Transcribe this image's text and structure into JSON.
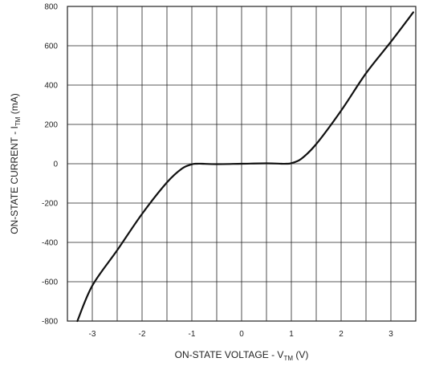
{
  "chart_data": {
    "type": "line",
    "title": "",
    "xlabel": {
      "main": "ON-STATE VOLTAGE - V",
      "subscript": "TM",
      "unit": " (V)"
    },
    "ylabel": {
      "main": "ON-STATE CURRENT - I",
      "subscript": "TM",
      "unit": " (mA)"
    },
    "xlim": [
      -3.5,
      3.5
    ],
    "ylim": [
      -800,
      800
    ],
    "x_ticks": [
      -3,
      -2,
      -1,
      0,
      1,
      2,
      3
    ],
    "x_tick_labels": [
      "-3",
      "-2",
      "-1",
      "0",
      "1",
      "2",
      "3"
    ],
    "y_ticks": [
      800,
      600,
      400,
      200,
      0,
      -200,
      -400,
      -600,
      -800
    ],
    "y_tick_labels": [
      "800",
      "600",
      "400",
      "200",
      "0",
      "-200",
      "-400",
      "-600",
      "-800"
    ],
    "x_grid": [
      -3.5,
      -3.0,
      -2.5,
      -2.0,
      -1.5,
      -1.0,
      -0.5,
      0,
      0.5,
      1.0,
      1.5,
      2.0,
      2.5,
      3.0
    ],
    "y_grid": [
      600,
      400,
      200,
      0,
      -200,
      -400,
      -600
    ],
    "grid": true,
    "legend": "none",
    "line_color": "#111111",
    "grid_color": "#222222",
    "series": [
      {
        "x": [
          -3.3,
          -3.0,
          -2.5,
          -2.0,
          -1.5,
          -1.2,
          -1.0,
          -0.9,
          -0.8,
          -0.5,
          0,
          0.5,
          0.8,
          0.9,
          1.0,
          1.2,
          1.5,
          2.0,
          2.5,
          3.0,
          3.45
        ],
        "y": [
          -800,
          -620,
          -440,
          -255,
          -95,
          -25,
          -3,
          0,
          0,
          -2,
          0,
          2,
          0,
          0,
          3,
          25,
          100,
          270,
          460,
          620,
          770
        ]
      }
    ]
  }
}
